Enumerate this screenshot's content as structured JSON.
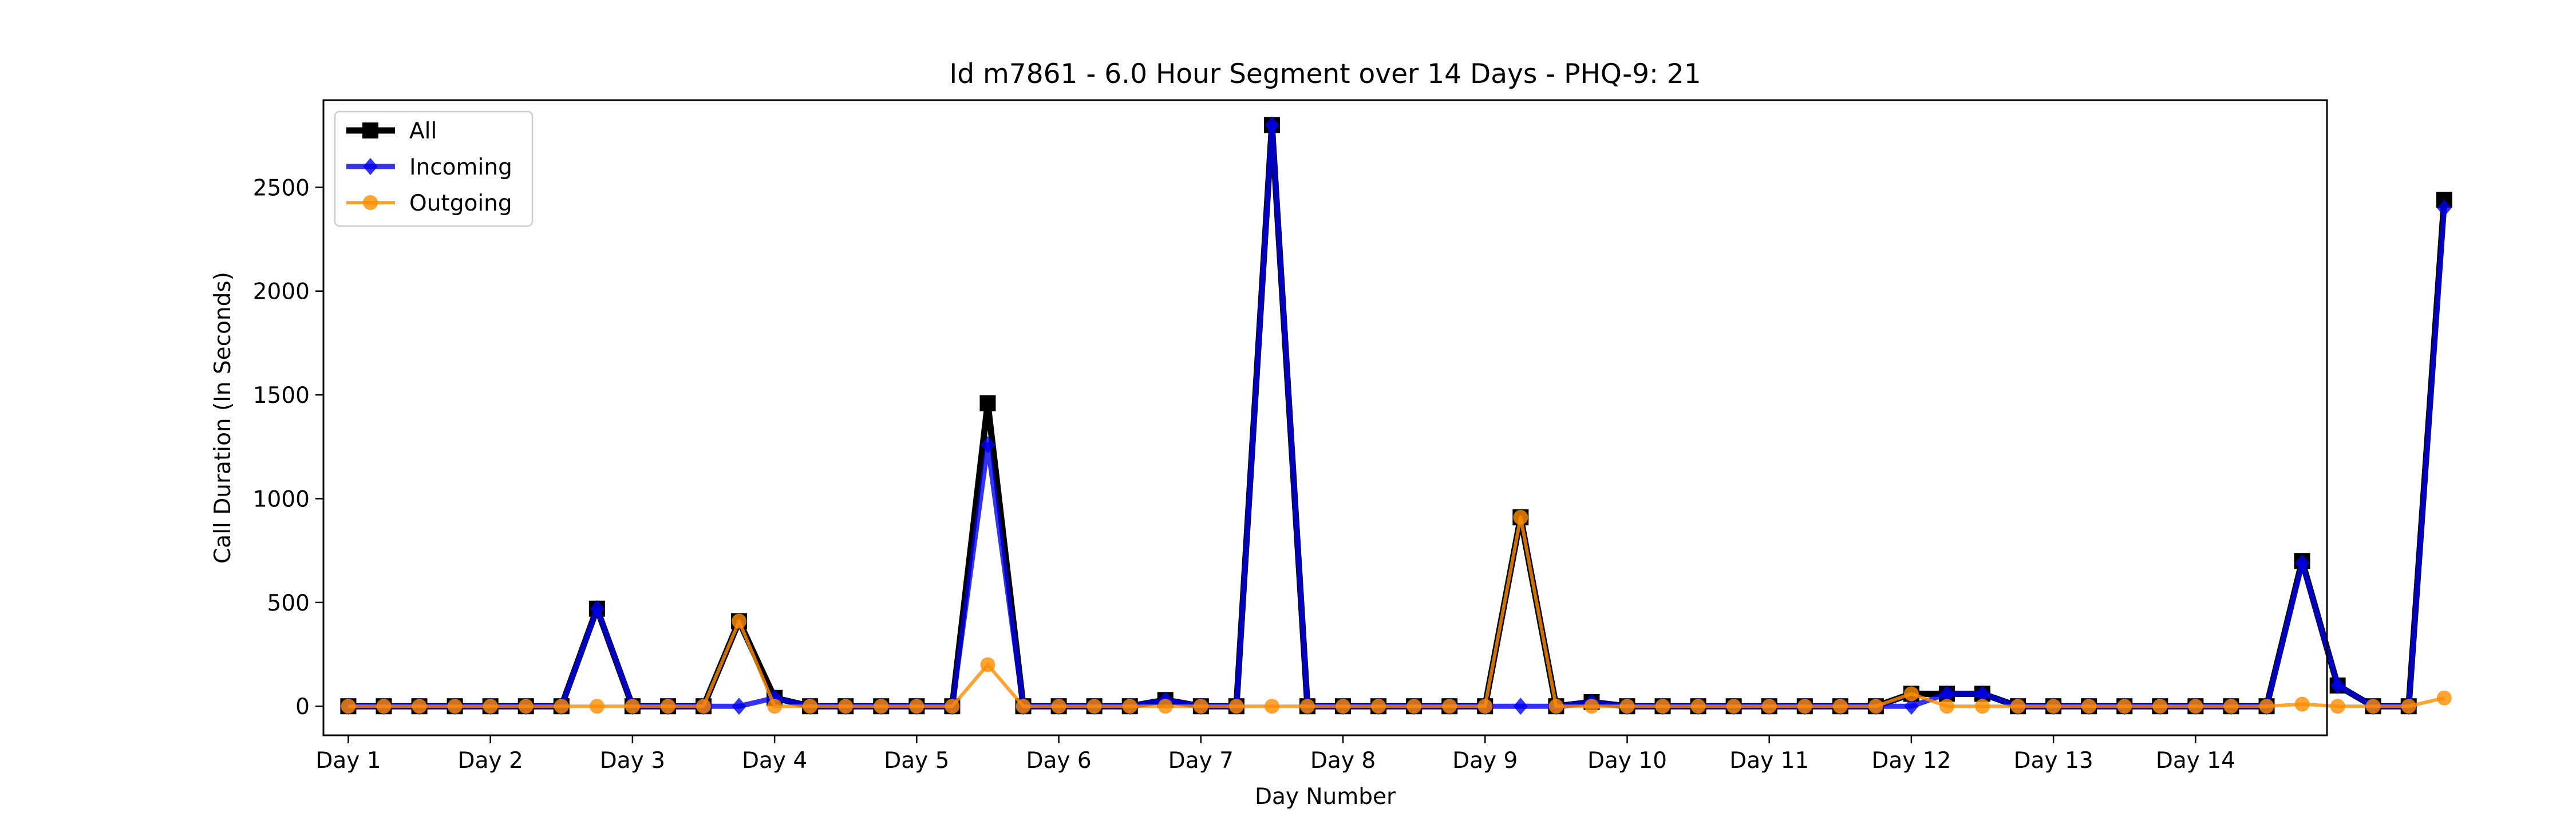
{
  "chart_data": {
    "type": "line",
    "title": "Id m7861 - 6.0 Hour Segment over 14 Days - PHQ-9: 21",
    "xlabel": "Day Number",
    "ylabel": "Call Duration (In Seconds)",
    "xlim": [
      -0.7,
      55.7
    ],
    "ylim": [
      -140,
      2920
    ],
    "yticks": [
      0,
      500,
      1000,
      1500,
      2000,
      2500
    ],
    "xticks": [
      {
        "pos": 0,
        "label": "Day 1"
      },
      {
        "pos": 4,
        "label": "Day 2"
      },
      {
        "pos": 8,
        "label": "Day 3"
      },
      {
        "pos": 12,
        "label": "Day 4"
      },
      {
        "pos": 16,
        "label": "Day 5"
      },
      {
        "pos": 20,
        "label": "Day 6"
      },
      {
        "pos": 24,
        "label": "Day 7"
      },
      {
        "pos": 28,
        "label": "Day 8"
      },
      {
        "pos": 32,
        "label": "Day 9"
      },
      {
        "pos": 36,
        "label": "Day 10"
      },
      {
        "pos": 40,
        "label": "Day 11"
      },
      {
        "pos": 44,
        "label": "Day 12"
      },
      {
        "pos": 48,
        "label": "Day 13"
      },
      {
        "pos": 52,
        "label": "Day 14"
      }
    ],
    "legend_position": "top-left",
    "grid": false,
    "series": [
      {
        "name": "All",
        "color": "#000000",
        "marker": "square",
        "values": [
          0,
          0,
          0,
          0,
          0,
          0,
          0,
          470,
          0,
          0,
          0,
          410,
          40,
          0,
          0,
          0,
          0,
          0,
          1460,
          0,
          0,
          0,
          0,
          30,
          0,
          0,
          2800,
          0,
          0,
          0,
          0,
          0,
          0,
          910,
          0,
          20,
          0,
          0,
          0,
          0,
          0,
          0,
          0,
          0,
          60,
          60,
          60,
          0,
          0,
          0,
          0,
          0,
          0,
          0,
          0,
          700,
          100,
          0,
          0,
          2440
        ]
      },
      {
        "name": "Incoming",
        "color": "#0000ee",
        "marker": "diamond",
        "values": [
          0,
          0,
          0,
          0,
          0,
          0,
          0,
          470,
          0,
          0,
          0,
          0,
          40,
          0,
          0,
          0,
          0,
          0,
          1260,
          0,
          0,
          0,
          0,
          30,
          0,
          0,
          2800,
          0,
          0,
          0,
          0,
          0,
          0,
          0,
          0,
          20,
          0,
          0,
          0,
          0,
          0,
          0,
          0,
          0,
          0,
          60,
          60,
          0,
          0,
          0,
          0,
          0,
          0,
          0,
          0,
          690,
          100,
          0,
          0,
          2400
        ]
      },
      {
        "name": "Outgoing",
        "color": "#ff8c00",
        "marker": "circle",
        "values": [
          0,
          0,
          0,
          0,
          0,
          0,
          0,
          0,
          0,
          0,
          0,
          410,
          0,
          0,
          0,
          0,
          0,
          0,
          200,
          0,
          0,
          0,
          0,
          0,
          0,
          0,
          0,
          0,
          0,
          0,
          0,
          0,
          0,
          910,
          0,
          0,
          0,
          0,
          0,
          0,
          0,
          0,
          0,
          0,
          60,
          0,
          0,
          0,
          0,
          0,
          0,
          0,
          0,
          0,
          0,
          10,
          0,
          0,
          0,
          40
        ]
      }
    ]
  }
}
